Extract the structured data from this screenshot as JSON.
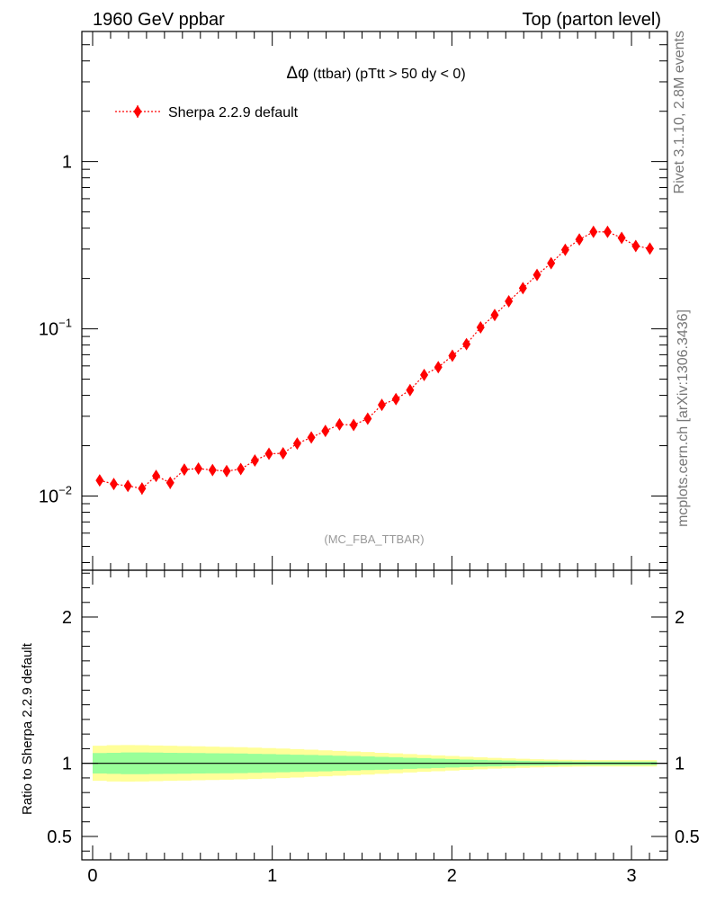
{
  "header": {
    "left": "1960 GeV ppbar",
    "right": "Top (parton level)",
    "side_top": "Rivet 3.1.10,  2.8M events",
    "side_bottom": "mcplots.cern.ch [arXiv:1306.3436]"
  },
  "chart_data": [
    {
      "type": "scatter",
      "title_prefix": "Δφ",
      "title": "(ttbar) (pTtt > 50 dy < 0)",
      "analysis_tag": "(MC_FBA_TTBAR)",
      "yscale": "log",
      "xlim": [
        -0.06,
        3.2
      ],
      "ylim": [
        0.0036,
        6.0
      ],
      "y_ticks": [
        {
          "value": 0.01,
          "base": "10",
          "exp": "−2"
        },
        {
          "value": 0.1,
          "base": "10",
          "exp": "−1"
        },
        {
          "value": 1,
          "base": "1",
          "exp": ""
        }
      ],
      "legend": {
        "position": "top-left"
      },
      "series": [
        {
          "name": "Sherpa 2.2.9 default",
          "color": "#ff0000",
          "x": [
            0.0393,
            0.1178,
            0.1963,
            0.2749,
            0.3534,
            0.432,
            0.5105,
            0.589,
            0.6676,
            0.7461,
            0.8247,
            0.9032,
            0.9817,
            1.0603,
            1.1388,
            1.2174,
            1.2959,
            1.3744,
            1.453,
            1.5315,
            1.6101,
            1.6886,
            1.7671,
            1.8457,
            1.9242,
            2.0028,
            2.0813,
            2.1598,
            2.2384,
            2.3169,
            2.3955,
            2.474,
            2.5525,
            2.6311,
            2.7096,
            2.7882,
            2.8667,
            2.9452,
            3.0238,
            3.1023
          ],
          "y": [
            0.0124,
            0.0118,
            0.0115,
            0.0111,
            0.0132,
            0.012,
            0.0144,
            0.0146,
            0.0143,
            0.0141,
            0.0145,
            0.0163,
            0.0179,
            0.018,
            0.0206,
            0.0224,
            0.0245,
            0.0268,
            0.0266,
            0.029,
            0.0351,
            0.038,
            0.043,
            0.053,
            0.059,
            0.069,
            0.081,
            0.102,
            0.121,
            0.146,
            0.175,
            0.21,
            0.247,
            0.297,
            0.342,
            0.38,
            0.38,
            0.35,
            0.313,
            0.302
          ],
          "yerr_frac": [
            0.07,
            0.07,
            0.07,
            0.08,
            0.07,
            0.08,
            0.07,
            0.07,
            0.07,
            0.07,
            0.07,
            0.07,
            0.06,
            0.06,
            0.06,
            0.06,
            0.06,
            0.06,
            0.06,
            0.05,
            0.05,
            0.05,
            0.05,
            0.04,
            0.04,
            0.04,
            0.04,
            0.03,
            0.03,
            0.03,
            0.03,
            0.03,
            0.03,
            0.02,
            0.02,
            0.02,
            0.02,
            0.02,
            0.02,
            0.02
          ]
        }
      ]
    },
    {
      "type": "area",
      "ylabel": "Ratio to Sherpa 2.2.9 default",
      "xlim": [
        -0.06,
        3.2
      ],
      "ylim": [
        0.34,
        2.32
      ],
      "x_ticks": [
        {
          "value": 0,
          "label": "0"
        },
        {
          "value": 1,
          "label": "1"
        },
        {
          "value": 2,
          "label": "2"
        },
        {
          "value": 3,
          "label": "3"
        }
      ],
      "y_ticks": [
        {
          "value": 0.5,
          "label": "0.5"
        },
        {
          "value": 1,
          "label": "1"
        },
        {
          "value": 2,
          "label": "2"
        }
      ],
      "band_colors": {
        "inner": "#99ff99",
        "outer": "#ffff99"
      },
      "x": [
        0.0393,
        0.1178,
        0.1963,
        0.2749,
        0.3534,
        0.432,
        0.5105,
        0.589,
        0.6676,
        0.7461,
        0.8247,
        0.9032,
        0.9817,
        1.0603,
        1.1388,
        1.2174,
        1.2959,
        1.3744,
        1.453,
        1.5315,
        1.6101,
        1.6886,
        1.7671,
        1.8457,
        1.9242,
        2.0028,
        2.0813,
        2.1598,
        2.2384,
        2.3169,
        2.3955,
        2.474,
        2.5525,
        2.6311,
        2.7096,
        2.7882,
        2.8667,
        2.9452,
        3.0238,
        3.1023
      ],
      "inner_frac": [
        0.07,
        0.072,
        0.074,
        0.074,
        0.073,
        0.072,
        0.071,
        0.07,
        0.069,
        0.068,
        0.067,
        0.065,
        0.063,
        0.061,
        0.059,
        0.057,
        0.055,
        0.052,
        0.05,
        0.047,
        0.044,
        0.041,
        0.038,
        0.035,
        0.032,
        0.029,
        0.026,
        0.023,
        0.021,
        0.019,
        0.017,
        0.015,
        0.014,
        0.013,
        0.012,
        0.012,
        0.012,
        0.012,
        0.012,
        0.012
      ],
      "outer_frac": [
        0.12,
        0.124,
        0.125,
        0.124,
        0.122,
        0.12,
        0.118,
        0.116,
        0.114,
        0.112,
        0.11,
        0.107,
        0.104,
        0.101,
        0.097,
        0.093,
        0.089,
        0.085,
        0.081,
        0.077,
        0.072,
        0.068,
        0.063,
        0.058,
        0.054,
        0.05,
        0.045,
        0.041,
        0.037,
        0.034,
        0.031,
        0.028,
        0.026,
        0.024,
        0.023,
        0.022,
        0.022,
        0.022,
        0.022,
        0.022
      ],
      "reference_value": 1
    }
  ]
}
